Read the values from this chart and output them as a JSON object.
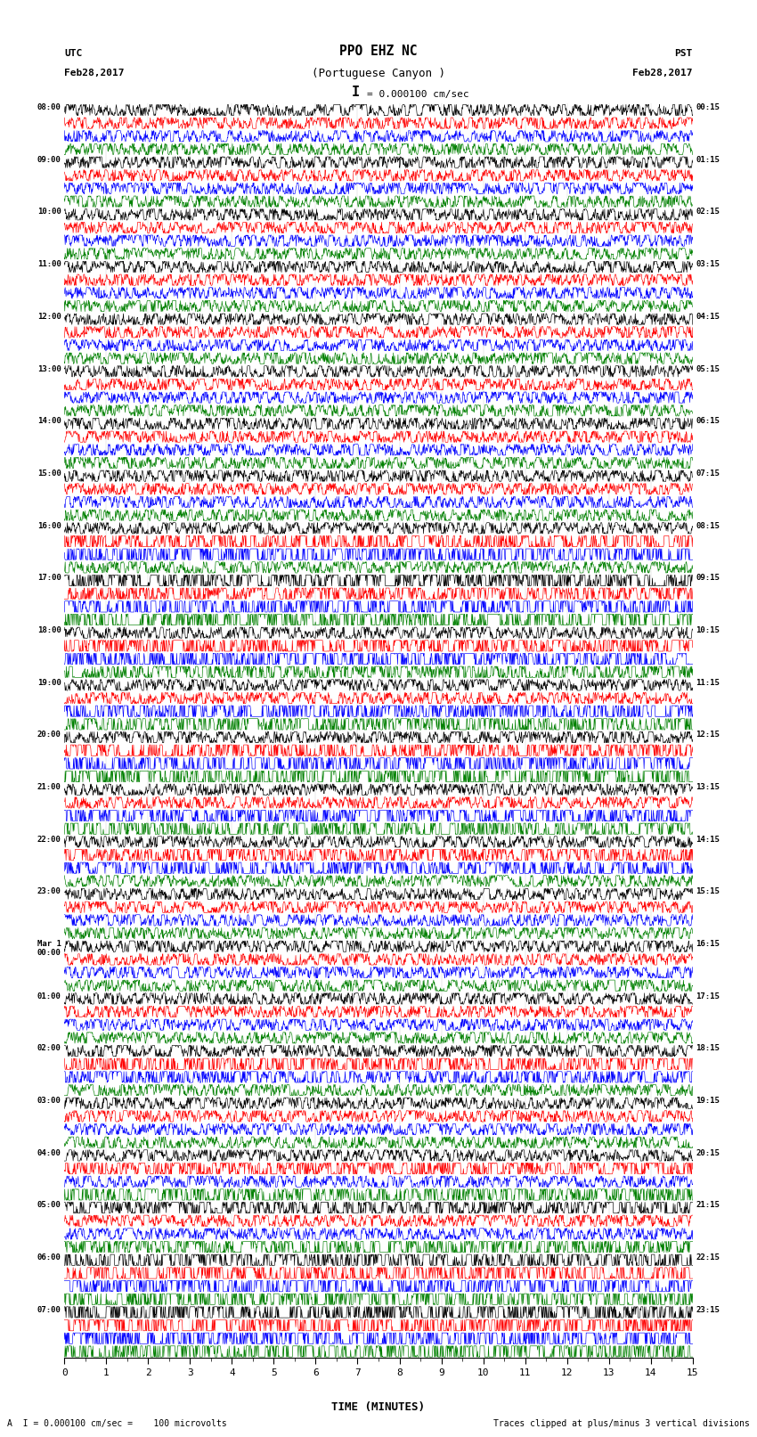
{
  "title_line1": "PPO EHZ NC",
  "title_line2": "(Portuguese Canyon )",
  "scale_label": "I = 0.000100 cm/sec",
  "utc_label": "UTC",
  "utc_date": "Feb28,2017",
  "pst_label": "PST",
  "pst_date": "Feb28,2017",
  "xlabel": "TIME (MINUTES)",
  "footer_left": "A  I = 0.000100 cm/sec =    100 microvolts",
  "footer_right": "Traces clipped at plus/minus 3 vertical divisions",
  "left_times": [
    "08:00",
    "09:00",
    "10:00",
    "11:00",
    "12:00",
    "13:00",
    "14:00",
    "15:00",
    "16:00",
    "17:00",
    "18:00",
    "19:00",
    "20:00",
    "21:00",
    "22:00",
    "23:00",
    "Mar 1\n00:00",
    "01:00",
    "02:00",
    "03:00",
    "04:00",
    "05:00",
    "06:00",
    "07:00"
  ],
  "right_times": [
    "00:15",
    "01:15",
    "02:15",
    "03:15",
    "04:15",
    "05:15",
    "06:15",
    "07:15",
    "08:15",
    "09:15",
    "10:15",
    "11:15",
    "12:15",
    "13:15",
    "14:15",
    "15:15",
    "16:15",
    "17:15",
    "18:15",
    "19:15",
    "20:15",
    "21:15",
    "22:15",
    "23:15"
  ],
  "n_rows": 24,
  "n_traces": 4,
  "trace_colors": [
    "black",
    "red",
    "blue",
    "green"
  ],
  "minutes_per_row": 15,
  "samples_per_minute": 100,
  "background_color": "white",
  "fig_width": 8.5,
  "fig_height": 16.13,
  "dpi": 100
}
